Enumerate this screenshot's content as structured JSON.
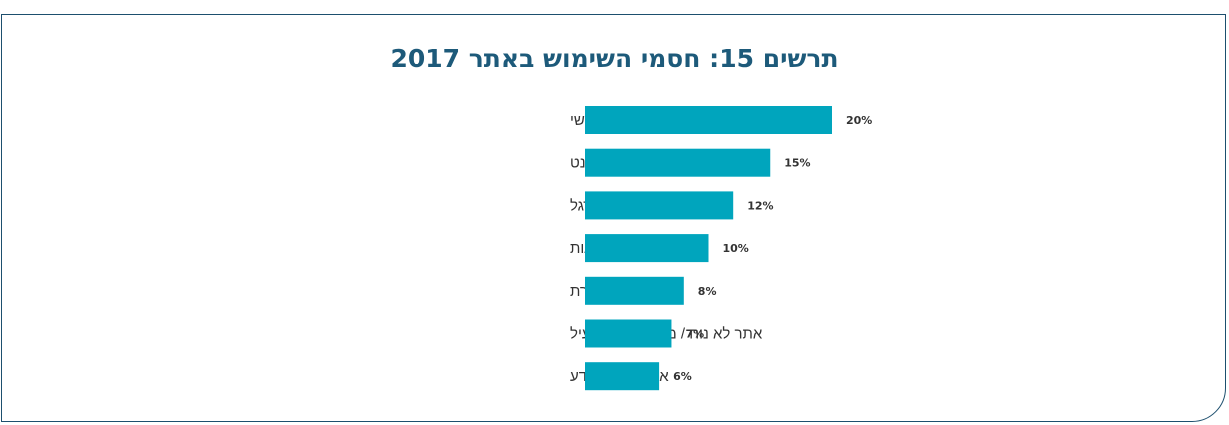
{
  "chart_data": {
    "type": "bar",
    "orientation": "horizontal",
    "title": "תרשים 15: חסמי השימוש באתר 2017",
    "categories": [
      "עדיפות למענה אנושי",
      "לא ניתן לבצע באינטרנט",
      "נוחות / הרגל",
      "חוסר מודעות",
      "ביורוקרטיה / ניירת",
      "אתר לא נוח / מסורבל / לא יעיל",
      "אין מספיק מידע"
    ],
    "values": [
      20,
      15,
      12,
      10,
      8,
      7,
      6
    ],
    "value_labels": [
      "20%",
      "15%",
      "12%",
      "10%",
      "8%",
      "7%",
      "6%"
    ],
    "bar_color": "#00a5bd",
    "grid": false,
    "legend": "none"
  }
}
